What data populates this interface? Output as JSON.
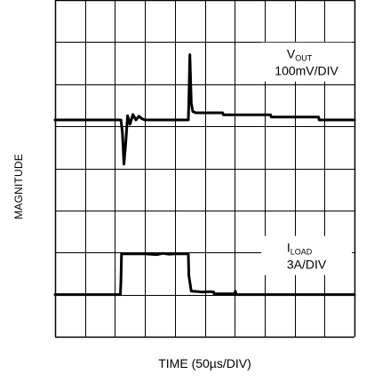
{
  "chart_data": {
    "type": "line",
    "xlabel": "TIME (50µs/DIV)",
    "ylabel": "MAGNITUDE",
    "grid": true,
    "divisions": {
      "x": 10,
      "y": 8
    },
    "xlim": [
      0,
      10
    ],
    "ylim": [
      0,
      8
    ],
    "series": [
      {
        "name": "VOUT",
        "label_main": "V",
        "label_sub": "OUT",
        "label_scale": "100mV/DIV",
        "x": [
          0,
          2.2,
          2.25,
          2.3,
          2.36,
          2.42,
          2.5,
          2.6,
          2.7,
          2.8,
          2.9,
          3.0,
          4.45,
          4.47,
          4.5,
          4.55,
          4.6,
          4.7,
          5.0,
          5.6,
          5.62,
          6.0,
          7.0,
          7.2,
          7.22,
          8.0,
          8.8,
          8.82,
          10
        ],
        "y": [
          5.15,
          5.15,
          4.85,
          4.1,
          4.6,
          5.25,
          5.05,
          5.28,
          5.15,
          5.24,
          5.18,
          5.15,
          5.15,
          5.6,
          6.7,
          5.55,
          5.35,
          5.32,
          5.32,
          5.32,
          5.27,
          5.27,
          5.27,
          5.27,
          5.22,
          5.22,
          5.22,
          5.15,
          5.15
        ]
      },
      {
        "name": "ILOAD",
        "label_main": "I",
        "label_sub": "LOAD",
        "label_scale": "3A/DIV",
        "x": [
          0,
          2.18,
          2.2,
          2.22,
          3.0,
          3.4,
          3.6,
          3.8,
          4.0,
          4.45,
          4.47,
          4.55,
          4.8,
          4.9,
          5.2,
          5.3,
          5.31,
          6.0,
          6.02,
          6.05,
          10
        ],
        "y": [
          1.0,
          1.0,
          1.3,
          1.97,
          1.97,
          1.95,
          1.98,
          1.96,
          1.97,
          1.97,
          1.45,
          1.08,
          1.07,
          1.06,
          1.07,
          1.06,
          1.02,
          1.02,
          1.08,
          1.0,
          1.0
        ]
      }
    ]
  }
}
